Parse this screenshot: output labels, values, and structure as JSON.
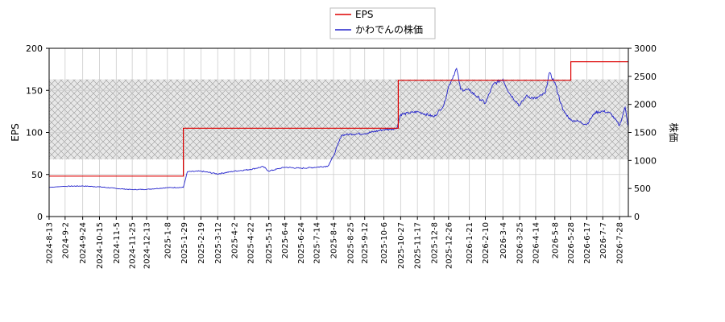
{
  "chart_data": {
    "type": "line",
    "xlabel": "",
    "ylabel_left": "EPS",
    "ylabel_right": "株価",
    "ylim_left": [
      0,
      200
    ],
    "ylim_right": [
      0,
      3000
    ],
    "yticks_left": [
      "0",
      "50",
      "100",
      "150",
      "200"
    ],
    "yticks_right": [
      "0",
      "500",
      "1000",
      "1500",
      "2000",
      "2500",
      "3000"
    ],
    "x_range": [
      "2024-08-13",
      "2026-08-08"
    ],
    "xticks": [
      "2024-8-13",
      "2024-9-2",
      "2024-9-24",
      "2024-10-15",
      "2024-11-5",
      "2024-11-25",
      "2024-12-13",
      "2025-1-8",
      "2025-1-29",
      "2025-2-19",
      "2025-3-12",
      "2025-4-2",
      "2025-4-22",
      "2025-5-15",
      "2025-6-4",
      "2025-6-24",
      "2025-7-14",
      "2025-8-4",
      "2025-8-25",
      "2025-9-12",
      "2025-10-6",
      "2025-10-27",
      "2025-11-17",
      "2025-12-8",
      "2025-12-26",
      "2026-1-21",
      "2026-2-10",
      "2026-3-4",
      "2026-3-25",
      "2026-4-14",
      "2026-5-8",
      "2026-5-28",
      "2026-6-17",
      "2026-7-7",
      "2026-7-28"
    ],
    "grid": true,
    "legend_position": "top-center",
    "forecast_band_left": [
      68,
      163
    ],
    "series": [
      {
        "name": "EPS",
        "axis": "left",
        "color": "#dd0000",
        "step": true,
        "points": [
          [
            "2024-08-13",
            48
          ],
          [
            "2025-01-27",
            48
          ],
          [
            "2025-01-28",
            105
          ],
          [
            "2025-10-23",
            105
          ],
          [
            "2025-10-24",
            162
          ],
          [
            "2026-05-27",
            162
          ],
          [
            "2026-05-28",
            184
          ],
          [
            "2026-08-08",
            184
          ]
        ]
      },
      {
        "name": "かわでんの株価",
        "axis": "right",
        "color": "#2222cc",
        "points": [
          [
            "2024-08-13",
            520
          ],
          [
            "2024-09-02",
            540
          ],
          [
            "2024-09-24",
            545
          ],
          [
            "2024-10-15",
            530
          ],
          [
            "2024-11-05",
            500
          ],
          [
            "2024-11-25",
            480
          ],
          [
            "2024-12-13",
            485
          ],
          [
            "2025-01-08",
            515
          ],
          [
            "2025-01-28",
            520
          ],
          [
            "2025-02-02",
            800
          ],
          [
            "2025-02-19",
            810
          ],
          [
            "2025-03-12",
            760
          ],
          [
            "2025-04-02",
            810
          ],
          [
            "2025-04-22",
            840
          ],
          [
            "2025-05-08",
            890
          ],
          [
            "2025-05-15",
            810
          ],
          [
            "2025-06-04",
            880
          ],
          [
            "2025-06-24",
            860
          ],
          [
            "2025-07-14",
            880
          ],
          [
            "2025-07-28",
            900
          ],
          [
            "2025-08-04",
            1080
          ],
          [
            "2025-08-14",
            1450
          ],
          [
            "2025-08-25",
            1470
          ],
          [
            "2025-09-12",
            1480
          ],
          [
            "2025-10-06",
            1550
          ],
          [
            "2025-10-22",
            1570
          ],
          [
            "2025-10-27",
            1820
          ],
          [
            "2025-11-17",
            1870
          ],
          [
            "2025-12-08",
            1780
          ],
          [
            "2025-12-20",
            1980
          ],
          [
            "2025-12-26",
            2320
          ],
          [
            "2026-01-05",
            2640
          ],
          [
            "2026-01-10",
            2270
          ],
          [
            "2026-01-21",
            2250
          ],
          [
            "2026-02-10",
            2020
          ],
          [
            "2026-02-20",
            2360
          ],
          [
            "2026-03-04",
            2450
          ],
          [
            "2026-03-12",
            2200
          ],
          [
            "2026-03-25",
            1980
          ],
          [
            "2026-04-02",
            2150
          ],
          [
            "2026-04-14",
            2100
          ],
          [
            "2026-04-26",
            2200
          ],
          [
            "2026-05-01",
            2560
          ],
          [
            "2026-05-08",
            2390
          ],
          [
            "2026-05-18",
            1900
          ],
          [
            "2026-05-28",
            1720
          ],
          [
            "2026-06-06",
            1700
          ],
          [
            "2026-06-17",
            1640
          ],
          [
            "2026-06-27",
            1850
          ],
          [
            "2026-07-07",
            1880
          ],
          [
            "2026-07-17",
            1840
          ],
          [
            "2026-07-28",
            1620
          ],
          [
            "2026-08-04",
            1950
          ],
          [
            "2026-08-08",
            1600
          ]
        ]
      }
    ]
  }
}
